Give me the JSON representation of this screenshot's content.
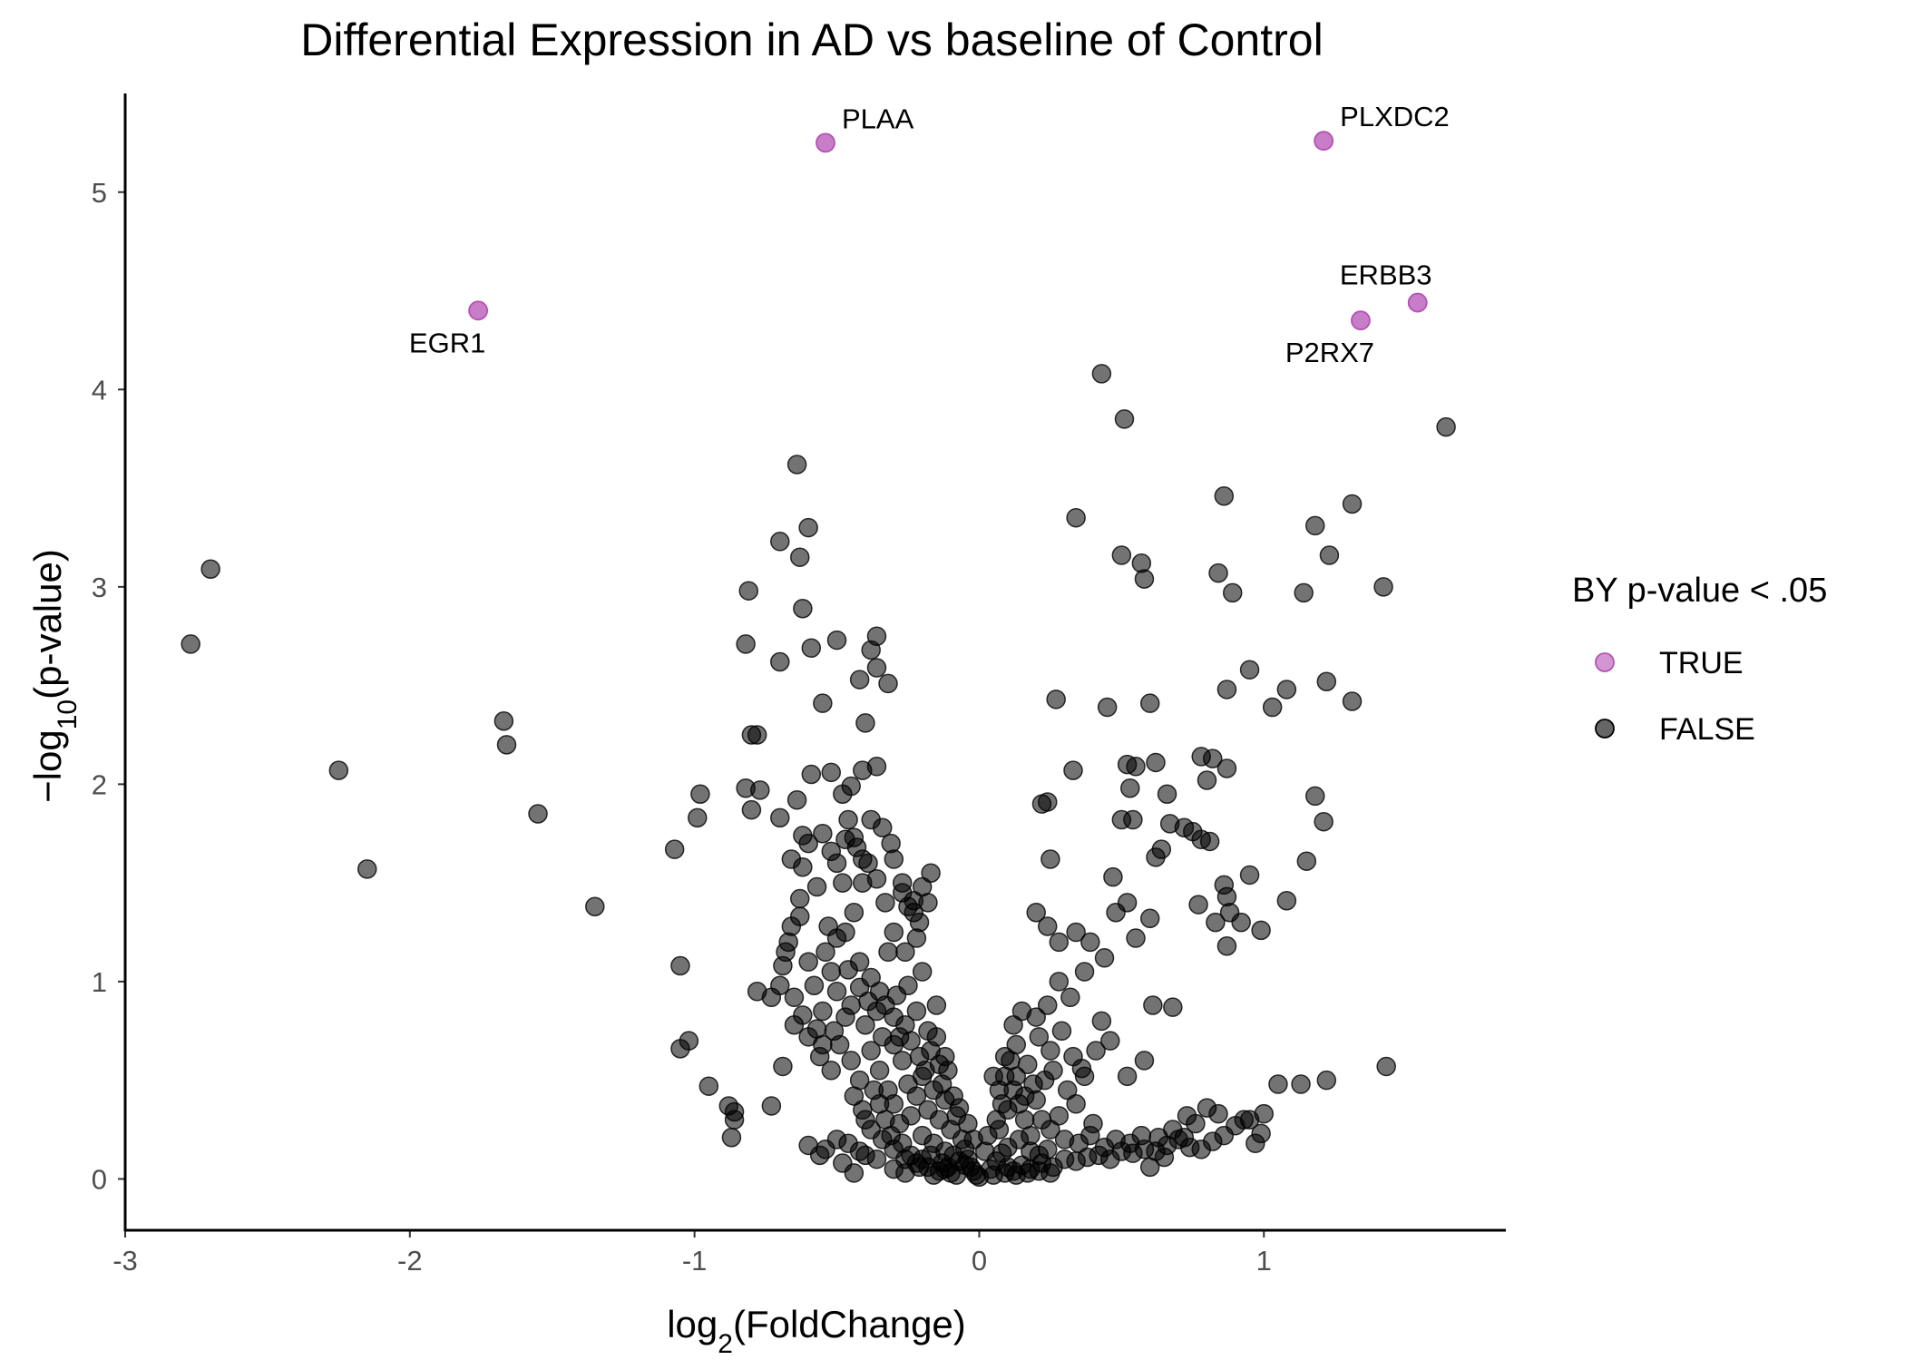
{
  "chart_data": {
    "type": "scatter",
    "title": "Differential Expression in AD vs baseline of Control",
    "xlabel": {
      "pre": "log",
      "sub": "2",
      "post": "(FoldChange)"
    },
    "ylabel": {
      "pre": "−log",
      "sub": "10",
      "post": "(p-value)"
    },
    "xlim": [
      -3,
      1.85
    ],
    "ylim": [
      -0.26,
      5.5
    ],
    "x_ticks": [
      -3,
      -2,
      -1,
      0,
      1
    ],
    "x_tick_labels": [
      "-3",
      "-2",
      "-1",
      "0",
      "1"
    ],
    "y_ticks": [
      0,
      1,
      2,
      3,
      4,
      5
    ],
    "y_tick_labels": [
      "0",
      "1",
      "2",
      "3",
      "4",
      "5"
    ],
    "grid": false,
    "legend": {
      "title": "BY p-value < .05",
      "position": "right",
      "entries": [
        {
          "label": "TRUE",
          "color": "#b452b4"
        },
        {
          "label": "FALSE",
          "color": "#000000"
        }
      ]
    },
    "colors": {
      "true": "#b452b4",
      "false": "#000000"
    },
    "significant_points": [
      {
        "gene": "PLAA",
        "x": -0.54,
        "y": 5.25,
        "label_side": "above-right"
      },
      {
        "gene": "PLXDC2",
        "x": 1.21,
        "y": 5.26,
        "label_side": "above-right"
      },
      {
        "gene": "ERBB3",
        "x": 1.54,
        "y": 4.44,
        "label_side": "above"
      },
      {
        "gene": "P2RX7",
        "x": 1.34,
        "y": 4.35,
        "label_side": "below-left"
      },
      {
        "gene": "EGR1",
        "x": -1.76,
        "y": 4.4,
        "label_side": "below-left"
      }
    ],
    "nonsignificant_points": [
      [
        -2.77,
        2.71
      ],
      [
        -2.7,
        3.09
      ],
      [
        -2.25,
        2.07
      ],
      [
        -2.15,
        1.57
      ],
      [
        -1.67,
        2.32
      ],
      [
        -1.66,
        2.2
      ],
      [
        -1.55,
        1.85
      ],
      [
        -1.35,
        1.38
      ],
      [
        -1.07,
        1.67
      ],
      [
        -1.05,
        1.08
      ],
      [
        -1.05,
        0.66
      ],
      [
        -1.02,
        0.7
      ],
      [
        -0.99,
        1.83
      ],
      [
        -0.98,
        1.95
      ],
      [
        -0.95,
        0.47
      ],
      [
        -0.88,
        0.37
      ],
      [
        -0.86,
        0.34
      ],
      [
        -0.86,
        0.3
      ],
      [
        -0.87,
        0.21
      ],
      [
        -0.81,
        2.98
      ],
      [
        -0.82,
        2.71
      ],
      [
        -0.8,
        2.25
      ],
      [
        -0.78,
        2.25
      ],
      [
        -0.82,
        1.98
      ],
      [
        -0.8,
        1.87
      ],
      [
        -0.77,
        1.97
      ],
      [
        -0.78,
        0.95
      ],
      [
        -0.73,
        0.92
      ],
      [
        -0.73,
        0.37
      ],
      [
        -0.69,
        0.57
      ],
      [
        -0.7,
        3.23
      ],
      [
        -0.7,
        2.62
      ],
      [
        -0.64,
        3.62
      ],
      [
        -0.63,
        3.15
      ],
      [
        -0.62,
        2.89
      ],
      [
        -0.6,
        3.3
      ],
      [
        -0.59,
        2.69
      ],
      [
        -0.55,
        2.41
      ],
      [
        -0.5,
        2.73
      ],
      [
        -0.42,
        2.53
      ],
      [
        -0.38,
        2.68
      ],
      [
        -0.36,
        2.75
      ],
      [
        -0.36,
        2.59
      ],
      [
        -0.32,
        2.51
      ],
      [
        -0.64,
        1.92
      ],
      [
        -0.59,
        2.05
      ],
      [
        -0.52,
        2.06
      ],
      [
        -0.48,
        1.95
      ],
      [
        -0.45,
        1.99
      ],
      [
        -0.41,
        2.07
      ],
      [
        -0.4,
        2.31
      ],
      [
        -0.36,
        2.09
      ],
      [
        -0.7,
        1.83
      ],
      [
        -0.66,
        1.62
      ],
      [
        -0.62,
        1.74
      ],
      [
        -0.6,
        1.7
      ],
      [
        -0.55,
        1.75
      ],
      [
        -0.52,
        1.66
      ],
      [
        -0.5,
        1.6
      ],
      [
        -0.47,
        1.72
      ],
      [
        -0.43,
        1.68
      ],
      [
        -0.41,
        1.5
      ],
      [
        -0.38,
        1.82
      ],
      [
        -0.34,
        1.78
      ],
      [
        -0.31,
        1.7
      ],
      [
        -0.3,
        1.62
      ],
      [
        -0.27,
        1.45
      ],
      [
        -0.25,
        1.38
      ],
      [
        -0.2,
        1.48
      ],
      [
        -0.18,
        1.4
      ],
      [
        -0.17,
        1.55
      ],
      [
        -0.67,
        1.2
      ],
      [
        -0.63,
        1.33
      ],
      [
        -0.6,
        1.1
      ],
      [
        -0.58,
        0.98
      ],
      [
        -0.55,
        0.85
      ],
      [
        -0.52,
        1.05
      ],
      [
        -0.5,
        0.95
      ],
      [
        -0.47,
        1.25
      ],
      [
        -0.45,
        0.88
      ],
      [
        -0.42,
        1.1
      ],
      [
        -0.4,
        0.78
      ],
      [
        -0.38,
        1.02
      ],
      [
        -0.35,
        0.95
      ],
      [
        -0.32,
        1.15
      ],
      [
        -0.3,
        0.82
      ],
      [
        -0.28,
        0.72
      ],
      [
        -0.25,
        0.98
      ],
      [
        -0.22,
        0.85
      ],
      [
        -0.2,
        1.05
      ],
      [
        -0.18,
        0.75
      ],
      [
        -0.15,
        0.88
      ],
      [
        -0.65,
        0.78
      ],
      [
        -0.6,
        0.72
      ],
      [
        -0.56,
        0.62
      ],
      [
        -0.52,
        0.55
      ],
      [
        -0.49,
        0.68
      ],
      [
        -0.45,
        0.6
      ],
      [
        -0.42,
        0.5
      ],
      [
        -0.38,
        0.65
      ],
      [
        -0.35,
        0.55
      ],
      [
        -0.32,
        0.45
      ],
      [
        -0.3,
        0.38
      ],
      [
        -0.27,
        0.6
      ],
      [
        -0.25,
        0.48
      ],
      [
        -0.22,
        0.42
      ],
      [
        -0.2,
        0.52
      ],
      [
        -0.18,
        0.35
      ],
      [
        -0.16,
        0.45
      ],
      [
        -0.14,
        0.3
      ],
      [
        -0.12,
        0.4
      ],
      [
        -0.1,
        0.25
      ],
      [
        -0.08,
        0.32
      ],
      [
        -0.06,
        0.2
      ],
      [
        -0.05,
        0.15
      ],
      [
        -0.04,
        0.1
      ],
      [
        -0.03,
        0.06
      ],
      [
        -0.02,
        0.04
      ],
      [
        -0.01,
        0.02
      ],
      [
        0.0,
        0.01
      ],
      [
        -0.28,
        0.28
      ],
      [
        -0.24,
        0.32
      ],
      [
        -0.2,
        0.22
      ],
      [
        -0.16,
        0.18
      ],
      [
        -0.12,
        0.14
      ],
      [
        -0.09,
        0.12
      ],
      [
        -0.07,
        0.09
      ],
      [
        -0.05,
        0.07
      ],
      [
        -0.38,
        0.25
      ],
      [
        -0.34,
        0.2
      ],
      [
        -0.3,
        0.15
      ],
      [
        -0.26,
        0.1
      ],
      [
        -0.22,
        0.08
      ],
      [
        -0.18,
        0.06
      ],
      [
        -0.14,
        0.04
      ],
      [
        -0.1,
        0.03
      ],
      [
        -0.6,
        0.17
      ],
      [
        -0.54,
        0.15
      ],
      [
        -0.48,
        0.08
      ],
      [
        -0.44,
        0.03
      ],
      [
        -0.4,
        0.12
      ],
      [
        -0.36,
        0.1
      ],
      [
        -0.3,
        0.05
      ],
      [
        -0.26,
        0.03
      ],
      [
        -0.21,
        0.06
      ],
      [
        -0.16,
        0.02
      ],
      [
        -0.12,
        0.05
      ],
      [
        -0.08,
        0.02
      ],
      [
        -0.46,
        0.18
      ],
      [
        -0.5,
        0.2
      ],
      [
        -0.56,
        0.12
      ],
      [
        -0.42,
        0.14
      ],
      [
        0.04,
        0.05
      ],
      [
        0.06,
        0.09
      ],
      [
        0.08,
        0.13
      ],
      [
        0.1,
        0.06
      ],
      [
        0.12,
        0.04
      ],
      [
        0.15,
        0.07
      ],
      [
        0.18,
        0.05
      ],
      [
        0.22,
        0.08
      ],
      [
        0.26,
        0.06
      ],
      [
        0.3,
        0.1
      ],
      [
        0.34,
        0.09
      ],
      [
        0.38,
        0.11
      ],
      [
        0.42,
        0.12
      ],
      [
        0.46,
        0.1
      ],
      [
        0.5,
        0.14
      ],
      [
        0.54,
        0.13
      ],
      [
        0.58,
        0.15
      ],
      [
        0.62,
        0.14
      ],
      [
        0.66,
        0.17
      ],
      [
        0.7,
        0.2
      ],
      [
        0.74,
        0.16
      ],
      [
        0.78,
        0.15
      ],
      [
        0.82,
        0.19
      ],
      [
        0.86,
        0.22
      ],
      [
        0.9,
        0.27
      ],
      [
        0.95,
        0.3
      ],
      [
        0.99,
        0.23
      ],
      [
        1.0,
        0.33
      ],
      [
        0.97,
        0.18
      ],
      [
        0.93,
        0.3
      ],
      [
        0.6,
        0.06
      ],
      [
        0.65,
        0.11
      ],
      [
        0.72,
        0.21
      ],
      [
        0.76,
        0.28
      ],
      [
        0.8,
        0.36
      ],
      [
        0.84,
        0.33
      ],
      [
        0.07,
        0.25
      ],
      [
        0.1,
        0.35
      ],
      [
        0.12,
        0.45
      ],
      [
        0.14,
        0.38
      ],
      [
        0.16,
        0.3
      ],
      [
        0.18,
        0.22
      ],
      [
        0.2,
        0.4
      ],
      [
        0.23,
        0.5
      ],
      [
        0.26,
        0.55
      ],
      [
        0.28,
        0.32
      ],
      [
        0.31,
        0.45
      ],
      [
        0.34,
        0.38
      ],
      [
        0.37,
        0.52
      ],
      [
        0.4,
        0.28
      ],
      [
        0.05,
        0.52
      ],
      [
        0.09,
        0.62
      ],
      [
        0.13,
        0.68
      ],
      [
        0.17,
        0.58
      ],
      [
        0.21,
        0.72
      ],
      [
        0.25,
        0.65
      ],
      [
        0.29,
        0.75
      ],
      [
        0.33,
        0.62
      ],
      [
        0.36,
        0.56
      ],
      [
        0.41,
        0.65
      ],
      [
        0.12,
        0.78
      ],
      [
        0.15,
        0.85
      ],
      [
        0.2,
        0.82
      ],
      [
        0.24,
        0.88
      ],
      [
        0.28,
        1.0
      ],
      [
        0.32,
        0.92
      ],
      [
        0.37,
        1.05
      ],
      [
        0.43,
        0.8
      ],
      [
        0.46,
        0.7
      ],
      [
        0.52,
        0.52
      ],
      [
        0.58,
        0.6
      ],
      [
        0.61,
        0.88
      ],
      [
        0.68,
        0.87
      ],
      [
        0.2,
        1.35
      ],
      [
        0.24,
        1.28
      ],
      [
        0.28,
        1.2
      ],
      [
        0.34,
        1.25
      ],
      [
        0.39,
        1.2
      ],
      [
        0.44,
        1.12
      ],
      [
        0.48,
        1.35
      ],
      [
        0.52,
        1.4
      ],
      [
        0.55,
        1.22
      ],
      [
        0.6,
        1.32
      ],
      [
        0.25,
        1.62
      ],
      [
        0.22,
        1.9
      ],
      [
        0.24,
        1.91
      ],
      [
        0.33,
        2.07
      ],
      [
        0.47,
        1.53
      ],
      [
        0.5,
        1.82
      ],
      [
        0.53,
        1.98
      ],
      [
        0.54,
        1.82
      ],
      [
        0.52,
        2.1
      ],
      [
        0.55,
        2.09
      ],
      [
        0.62,
        1.63
      ],
      [
        0.64,
        1.67
      ],
      [
        0.67,
        1.8
      ],
      [
        0.72,
        1.78
      ],
      [
        0.75,
        1.76
      ],
      [
        0.78,
        1.72
      ],
      [
        0.81,
        1.71
      ],
      [
        0.8,
        2.02
      ],
      [
        0.78,
        2.14
      ],
      [
        0.82,
        2.13
      ],
      [
        0.87,
        2.08
      ],
      [
        0.6,
        2.41
      ],
      [
        0.62,
        2.11
      ],
      [
        0.66,
        1.95
      ],
      [
        0.77,
        1.39
      ],
      [
        0.83,
        1.3
      ],
      [
        0.86,
        1.49
      ],
      [
        0.87,
        1.43
      ],
      [
        0.87,
        1.18
      ],
      [
        0.88,
        1.35
      ],
      [
        0.92,
        1.3
      ],
      [
        0.95,
        1.54
      ],
      [
        0.99,
        1.26
      ],
      [
        1.08,
        1.41
      ],
      [
        1.15,
        1.61
      ],
      [
        1.18,
        1.94
      ],
      [
        1.21,
        1.81
      ],
      [
        0.45,
        2.39
      ],
      [
        0.27,
        2.43
      ],
      [
        0.5,
        3.16
      ],
      [
        0.57,
        3.12
      ],
      [
        0.58,
        3.04
      ],
      [
        0.34,
        3.35
      ],
      [
        0.84,
        3.07
      ],
      [
        0.89,
        2.97
      ],
      [
        0.86,
        3.46
      ],
      [
        0.95,
        2.58
      ],
      [
        0.87,
        2.48
      ],
      [
        1.03,
        2.39
      ],
      [
        1.08,
        2.48
      ],
      [
        1.14,
        2.97
      ],
      [
        1.18,
        3.31
      ],
      [
        1.23,
        3.16
      ],
      [
        1.22,
        2.52
      ],
      [
        1.31,
        3.42
      ],
      [
        1.31,
        2.42
      ],
      [
        1.42,
        3.0
      ],
      [
        1.05,
        0.48
      ],
      [
        1.13,
        0.48
      ],
      [
        1.22,
        0.5
      ],
      [
        1.43,
        0.57
      ],
      [
        0.43,
        4.08
      ],
      [
        0.51,
        3.85
      ],
      [
        1.64,
        3.81
      ],
      [
        -0.3,
        1.25
      ],
      [
        -0.26,
        1.15
      ],
      [
        -0.22,
        1.22
      ],
      [
        -0.23,
        1.35
      ],
      [
        -0.15,
        0.72
      ],
      [
        -0.12,
        0.62
      ],
      [
        -0.11,
        0.55
      ],
      [
        -0.13,
        0.48
      ],
      [
        -0.09,
        0.42
      ],
      [
        -0.07,
        0.36
      ],
      [
        -0.04,
        0.28
      ],
      [
        -0.02,
        0.2
      ],
      [
        0.02,
        0.14
      ],
      [
        0.03,
        0.22
      ],
      [
        -0.35,
        0.38
      ],
      [
        -0.33,
        0.3
      ],
      [
        -0.31,
        0.22
      ],
      [
        -0.27,
        0.18
      ],
      [
        -0.24,
        0.12
      ],
      [
        -0.2,
        0.1
      ],
      [
        -0.17,
        0.12
      ],
      [
        -0.13,
        0.08
      ],
      [
        -0.11,
        0.06
      ],
      [
        -0.44,
        0.42
      ],
      [
        -0.41,
        0.35
      ],
      [
        -0.4,
        0.3
      ],
      [
        -0.37,
        0.45
      ],
      [
        -0.34,
        0.72
      ],
      [
        -0.3,
        0.68
      ],
      [
        -0.26,
        0.78
      ],
      [
        -0.24,
        0.7
      ],
      [
        -0.21,
        0.62
      ],
      [
        -0.19,
        0.55
      ],
      [
        -0.17,
        0.65
      ],
      [
        -0.14,
        0.58
      ],
      [
        -0.69,
        1.08
      ],
      [
        -0.7,
        0.98
      ],
      [
        -0.65,
        0.92
      ],
      [
        -0.62,
        0.83
      ],
      [
        -0.57,
        0.76
      ],
      [
        -0.54,
        1.15
      ],
      [
        -0.5,
        1.22
      ],
      [
        -0.46,
        1.06
      ],
      [
        -0.42,
        0.97
      ],
      [
        -0.39,
        0.9
      ],
      [
        -0.36,
        0.85
      ],
      [
        -0.33,
        0.88
      ],
      [
        -0.29,
        0.93
      ],
      [
        -0.63,
        1.42
      ],
      [
        -0.57,
        1.48
      ],
      [
        -0.53,
        1.28
      ],
      [
        -0.48,
        1.5
      ],
      [
        -0.44,
        1.35
      ],
      [
        -0.41,
        1.62
      ],
      [
        -0.36,
        1.52
      ],
      [
        -0.33,
        1.4
      ],
      [
        -0.27,
        1.5
      ],
      [
        -0.23,
        1.41
      ],
      [
        -0.21,
        1.3
      ],
      [
        -0.46,
        1.82
      ],
      [
        -0.44,
        1.73
      ],
      [
        -0.39,
        1.6
      ],
      [
        -0.62,
        1.58
      ],
      [
        -0.66,
        1.28
      ],
      [
        -0.68,
        1.15
      ],
      [
        -0.55,
        0.68
      ],
      [
        -0.51,
        0.75
      ],
      [
        -0.47,
        0.82
      ],
      [
        0.07,
        0.45
      ],
      [
        0.09,
        0.52
      ],
      [
        0.11,
        0.6
      ],
      [
        0.13,
        0.52
      ],
      [
        0.06,
        0.3
      ],
      [
        0.08,
        0.38
      ],
      [
        0.16,
        0.42
      ],
      [
        0.19,
        0.48
      ],
      [
        0.22,
        0.3
      ],
      [
        0.25,
        0.25
      ],
      [
        0.3,
        0.2
      ],
      [
        0.35,
        0.18
      ],
      [
        0.39,
        0.22
      ],
      [
        0.44,
        0.16
      ],
      [
        0.48,
        0.2
      ],
      [
        0.53,
        0.18
      ],
      [
        0.57,
        0.22
      ],
      [
        0.63,
        0.21
      ],
      [
        0.68,
        0.25
      ],
      [
        0.73,
        0.32
      ],
      [
        0.05,
        0.02
      ],
      [
        0.09,
        0.03
      ],
      [
        0.13,
        0.02
      ],
      [
        0.17,
        0.03
      ],
      [
        0.21,
        0.04
      ],
      [
        0.25,
        0.03
      ],
      [
        0.1,
        0.16
      ],
      [
        0.14,
        0.2
      ],
      [
        0.18,
        0.14
      ],
      [
        0.21,
        0.12
      ],
      [
        0.24,
        0.15
      ]
    ]
  }
}
